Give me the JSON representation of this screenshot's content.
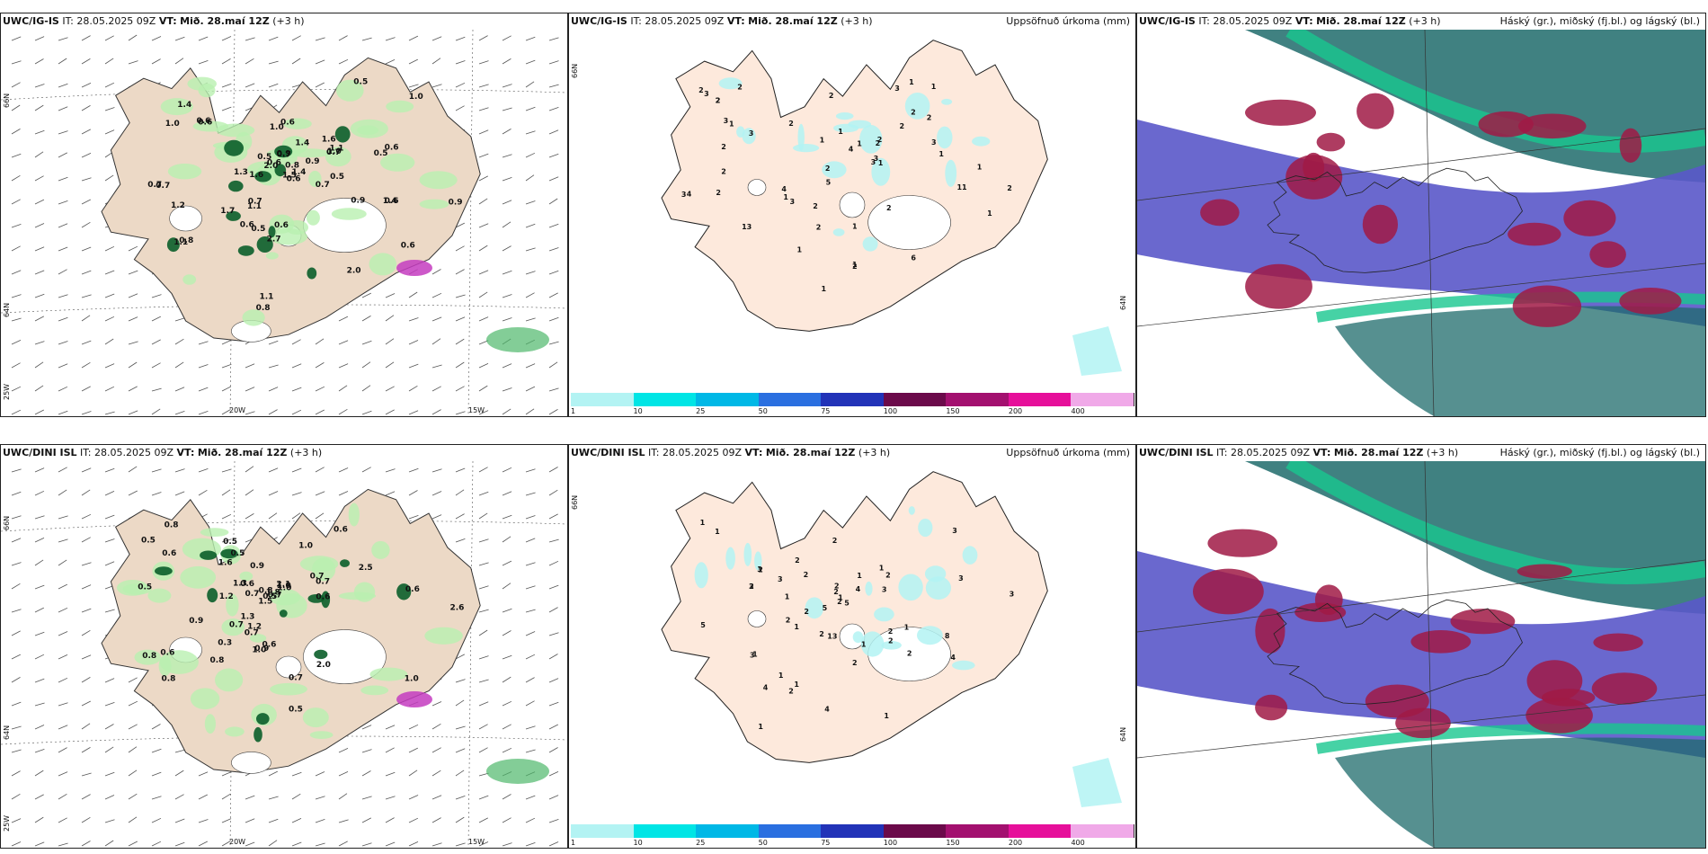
{
  "rows": [
    {
      "model": "UWC/IG-IS",
      "it_label": "IT:",
      "it_value": "28.05.2025 09Z",
      "vt_label": "VT:",
      "vt_value": "Mið. 28.maí 12Z",
      "lead": "(+3 h)",
      "precip_title": "Uppsöfnuð úrkoma (mm)",
      "cloud_title": "Háský (gr.), miðský (fj.bl.) og lágský (bl.)",
      "lat_labels": [
        "66N",
        "64N",
        "25W"
      ],
      "lon_labels": [
        "20W",
        "15W"
      ],
      "wind_values": [
        "0.9",
        "0.6",
        "1.4",
        "1.1",
        "0.9",
        "0.8",
        "1.0",
        "0.6",
        "1.0",
        "1.4",
        "0.7",
        "1.6",
        "0.7",
        "0.8",
        "1.7",
        "0.6",
        "0.6",
        "0.5",
        "0.7",
        "1.5",
        "0.9",
        "1.2",
        "2.0",
        "1.1",
        "1.0",
        "0.6",
        "0.7",
        "0.6",
        "0.7",
        "0.6",
        "0.6",
        "0.5",
        "2.7",
        "0.7",
        "1.0",
        "0.8",
        "1.6",
        "0.9",
        "0.6",
        "2.0",
        "1.1",
        "1.4",
        "0.5",
        "0.5",
        "1.3",
        "0.6",
        "1.4",
        "0.5",
        "1.1"
      ],
      "precip_values": [
        "2",
        "3",
        "2",
        "1",
        "1",
        "2",
        "3",
        "2",
        "1",
        "2",
        "1",
        "2",
        "1",
        "1",
        "1",
        "1",
        "2",
        "2",
        "2",
        "2",
        "1",
        "3",
        "3",
        "3",
        "2",
        "2",
        "3",
        "4",
        "3",
        "2",
        "1",
        "1",
        "1",
        "2",
        "2",
        "2",
        "1",
        "1",
        "1",
        "2",
        "1",
        "3",
        "4",
        "6",
        "5",
        "3",
        "4",
        "2",
        "2",
        "1",
        "13",
        "2"
      ]
    },
    {
      "model": "UWC/DINI ISL",
      "it_label": "IT:",
      "it_value": "28.05.2025 09Z",
      "vt_label": "VT:",
      "vt_value": "Mið. 28.maí 12Z",
      "lead": "(+3 h)",
      "precip_title": "Uppsöfnuð úrkoma (mm)",
      "cloud_title": "Háský (gr.), miðský (fj.bl.) og lágský (bl.)",
      "lat_labels": [
        "66N",
        "64N",
        "25W"
      ],
      "lon_labels": [
        "20W",
        "15W"
      ],
      "wind_values": [
        "0.7",
        "0.8",
        "1.8",
        "0.7",
        "0.9",
        "0.9",
        "0.5",
        "1.6",
        "0.5",
        "0.8",
        "0.7",
        "1.5",
        "0.6",
        "0.5",
        "0.6",
        "1.0",
        "2.6",
        "0.8",
        "0.5",
        "2.5",
        "0.6",
        "0.7",
        "0.7",
        "0.6",
        "1.0",
        "1.0",
        "1.2",
        "0.6",
        "0.6",
        "2.0",
        "0.7",
        "1.2",
        "0.9",
        "0.8",
        "1.3",
        "0.7",
        "0.5",
        "1.0",
        "1.0",
        "0.5",
        "0.8",
        "0.6",
        "1.3",
        "2.1",
        "0.3"
      ],
      "precip_values": [
        "1",
        "2",
        "1",
        "2",
        "3",
        "2",
        "1",
        "3",
        "2",
        "2",
        "1",
        "1",
        "3",
        "2",
        "1",
        "2",
        "2",
        "2",
        "1",
        "1",
        "3",
        "4",
        "4",
        "4",
        "3",
        "2",
        "5",
        "5",
        "3",
        "2",
        "1",
        "1",
        "2",
        "8",
        "4",
        "13",
        "2",
        "1",
        "2",
        "5",
        "2",
        "3",
        "3",
        "2",
        "1",
        "2",
        "1",
        "1"
      ]
    }
  ],
  "colorbar": {
    "ticks": [
      "1",
      "10",
      "25",
      "50",
      "75",
      "100",
      "150",
      "200",
      "400"
    ],
    "colors": [
      "#b3f3f3",
      "#00e5e5",
      "#00b8e6",
      "#2a6fe0",
      "#2233b8",
      "#6b0a4a",
      "#a3106f",
      "#e60f9a",
      "#f0a9e8"
    ]
  },
  "colors": {
    "land": "#ecd9c6",
    "precip_land": "#fde9dc",
    "light_green": "#b9f0b0",
    "mid_green": "#4fb86b",
    "dark_green": "#0b5e2a",
    "magenta": "#c43cc0",
    "cloud_high": "#1e6b6b",
    "cloud_high2": "#18c78e",
    "cloud_mid": "#5a58c9",
    "cloud_low": "#a01a45"
  }
}
